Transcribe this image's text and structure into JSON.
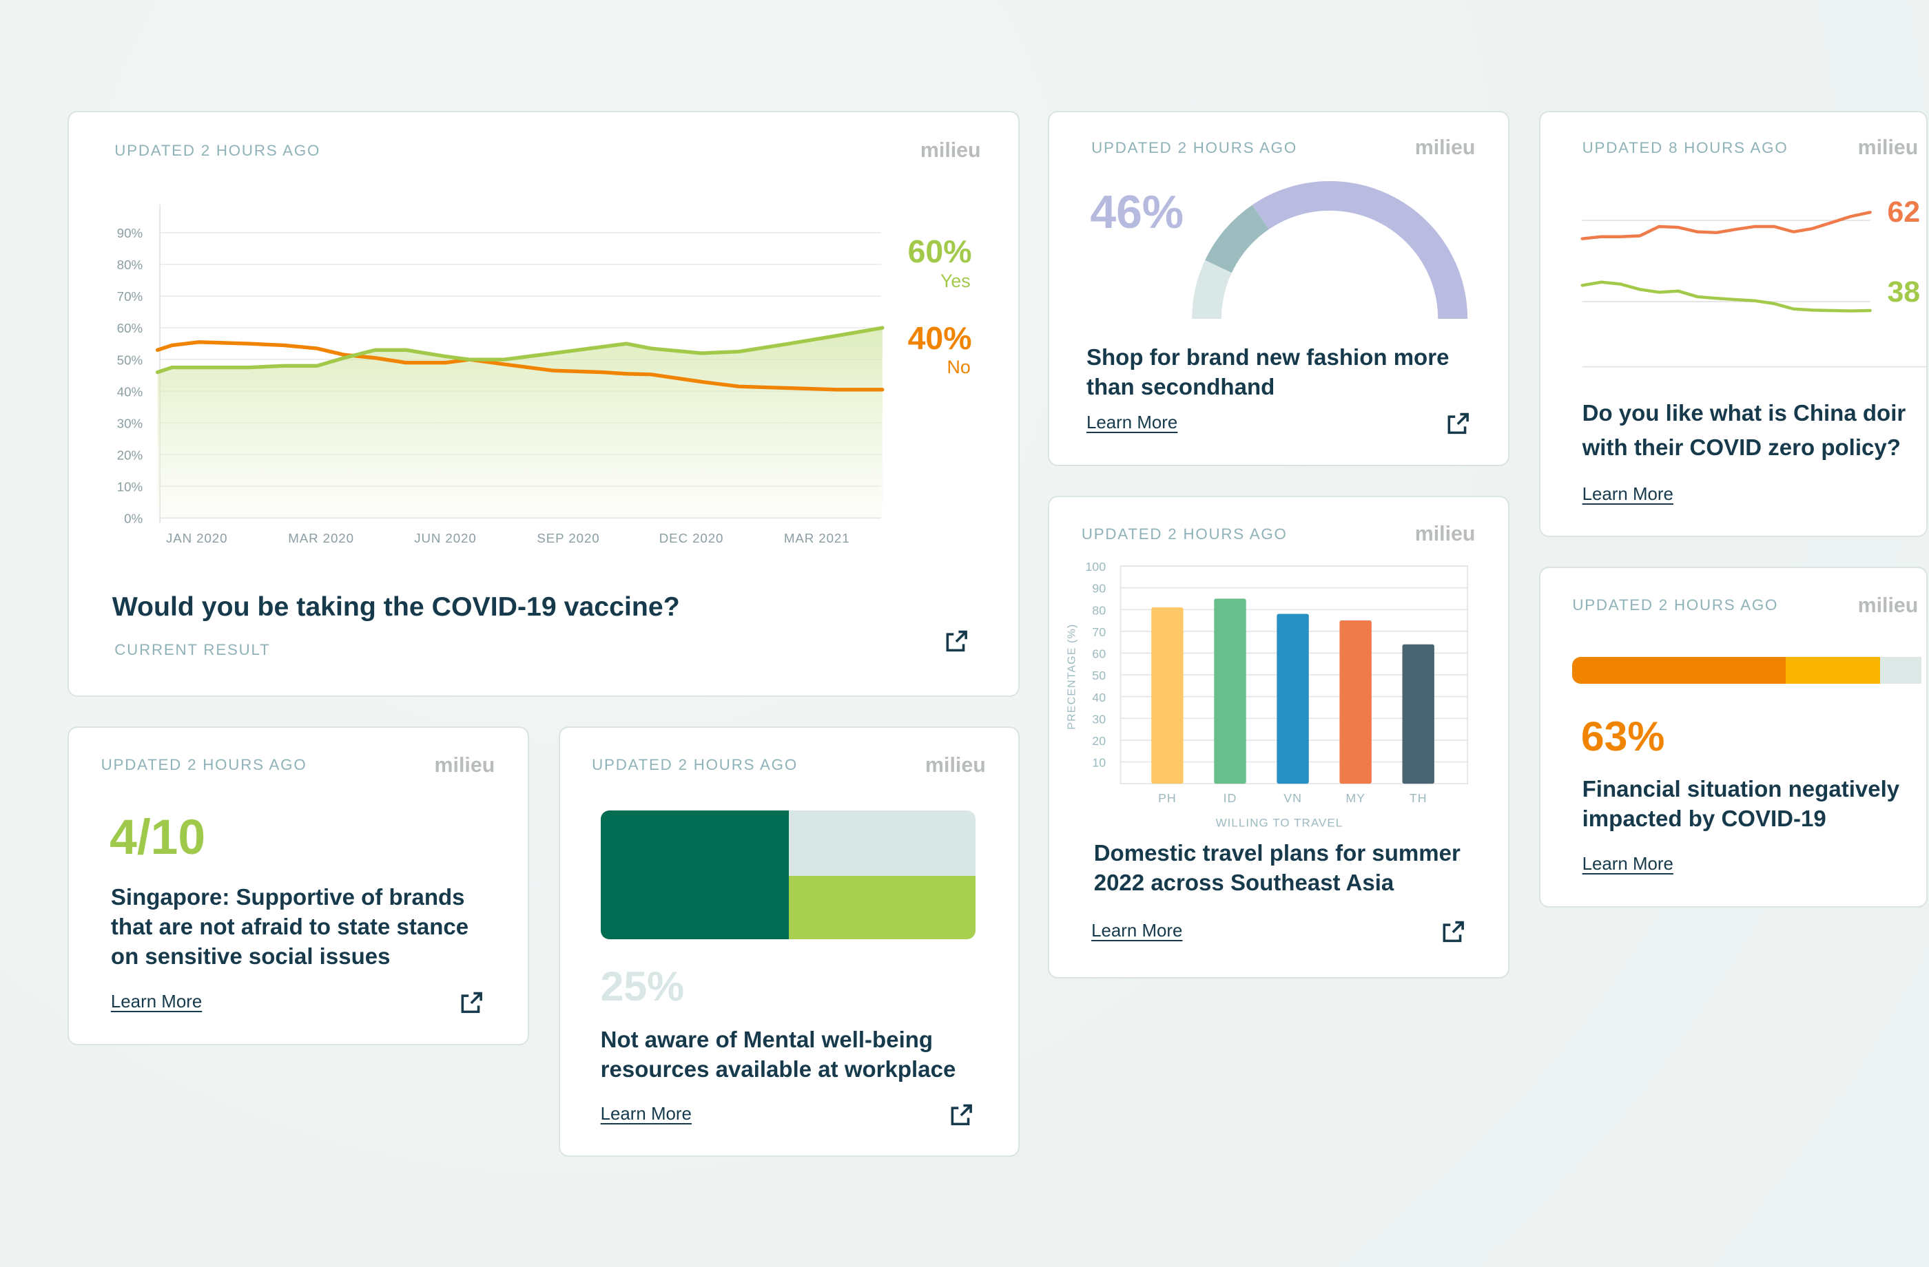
{
  "brand": "milieu",
  "colors": {
    "background": "#eef3f2",
    "title": "#163a4b",
    "meta": "#8fb2b9",
    "yes_green": "#a3c94b",
    "no_orange": "#f08300"
  },
  "cards": {
    "vaccine": {
      "updated": "UPDATED 2 HOURS AGO",
      "yes_value": "60%",
      "yes_label": "Yes",
      "no_value": "40%",
      "no_label": "No",
      "title": "Would you be taking the COVID-19 vaccine?",
      "subtitle": "CURRENT RESULT",
      "icon": "external-link-icon"
    },
    "singapore": {
      "updated": "UPDATED 2 HOURS AGO",
      "stat": "4/10",
      "title_lines": [
        "Singapore: Supportive of brands",
        "that are not afraid to state stance",
        "on sensitive social issues"
      ],
      "learn_more": "Learn More",
      "icon": "external-link-icon"
    },
    "mental": {
      "updated": "UPDATED 2 HOURS AGO",
      "stat": "25%",
      "title_lines": [
        "Not aware of Mental well-being",
        "resources available at workplace"
      ],
      "learn_more": "Learn More",
      "block_colors": [
        "#006d52",
        "#d8e7e5",
        "#a8cf50"
      ],
      "icon": "external-link-icon"
    },
    "fashion": {
      "updated": "UPDATED 2 HOURS AGO",
      "stat": "46%",
      "gauge_segments": [
        0.14,
        0.17,
        0.69
      ],
      "gauge_colors": [
        "#d9e8e6",
        "#9cbcc0",
        "#b9bbe0"
      ],
      "title_lines": [
        "Shop for brand new fashion more",
        "than secondhand"
      ],
      "learn_more": "Learn More",
      "icon": "external-link-icon"
    },
    "travel": {
      "updated": "UPDATED 2 HOURS AGO",
      "title_lines": [
        "Domestic travel plans for summer",
        "2022 across Southeast Asia"
      ],
      "learn_more": "Learn More",
      "icon": "external-link-icon"
    },
    "china": {
      "updated": "UPDATED 8 HOURS AGO",
      "stat_a": "62",
      "stat_b": "38",
      "title_lines": [
        "Do you like what is China doir",
        "with their COVID zero policy?"
      ],
      "learn_more": "Learn More"
    },
    "financial": {
      "updated": "UPDATED 2 HOURS AGO",
      "stat": "63%",
      "bar_segments": [
        0.61,
        0.27,
        0.12
      ],
      "bar_colors": [
        "#f08300",
        "#f9b500",
        "#dce9e7"
      ],
      "title_lines": [
        "Financial situation negatively",
        "impacted by COVID-19"
      ],
      "learn_more": "Learn More"
    }
  },
  "chart_data": [
    {
      "type": "area",
      "ylim": [
        0,
        90
      ],
      "yticks": [
        "0%",
        "10%",
        "20%",
        "30%",
        "40%",
        "50%",
        "60%",
        "70%",
        "80%",
        "90%"
      ],
      "xticks": [
        {
          "date": "2020-01-01",
          "label": "JAN 2020"
        },
        {
          "date": "2020-03-01",
          "label": "MAR 2020"
        },
        {
          "date": "2020-06-01",
          "label": "JUN 2020"
        },
        {
          "date": "2020-09-01",
          "label": "SEP 2020"
        },
        {
          "date": "2020-12-01",
          "label": "DEC 2020"
        },
        {
          "date": "2021-03-01",
          "label": "MAR 2021"
        }
      ],
      "grid": true,
      "x": [
        "2019-12-13",
        "2019-12-20",
        "2020-01-02",
        "2020-01-26",
        "2020-02-12",
        "2020-02-28",
        "2020-03-18",
        "2020-04-10",
        "2020-05-03",
        "2020-06-01",
        "2020-06-19",
        "2020-07-15",
        "2020-08-21",
        "2020-09-26",
        "2020-10-14",
        "2020-11-01",
        "2020-12-08",
        "2021-01-04",
        "2021-02-09",
        "2021-03-15",
        "2021-04-17"
      ],
      "series": [
        {
          "name": "Yes",
          "color": "#a3c94b",
          "values": [
            46,
            47.5,
            47.5,
            47.5,
            48,
            48,
            50.5,
            53,
            53,
            51,
            50,
            50,
            52,
            54,
            55,
            53.5,
            52,
            52.5,
            55,
            57.5,
            60
          ]
        },
        {
          "name": "No",
          "color": "#f08300",
          "values": [
            53,
            54.5,
            55.5,
            55,
            54.5,
            53.5,
            51.5,
            50.5,
            49,
            49,
            50,
            48.5,
            46.5,
            46,
            45.5,
            45.3,
            43,
            41.5,
            41,
            40.5,
            40.5
          ]
        }
      ]
    },
    {
      "type": "bar",
      "categories": [
        "PH",
        "ID",
        "VN",
        "MY",
        "TH"
      ],
      "values": [
        81,
        85,
        78,
        75,
        64
      ],
      "colors": [
        "#fec868",
        "#68be8c",
        "#2790c3",
        "#ef7b4b",
        "#4a6572"
      ],
      "ylim": [
        0,
        100
      ],
      "yticks": [
        10,
        20,
        30,
        40,
        50,
        60,
        70,
        80,
        90,
        100
      ],
      "xlabel": "WILLING TO TRAVEL",
      "ylabel": "PRECENTAGE (%)",
      "grid": true
    },
    {
      "type": "line",
      "series": [
        {
          "color": "#ef7b4b",
          "values": [
            55.5,
            56,
            56,
            56.2,
            58.5,
            58.3,
            57.2,
            57,
            57.8,
            58.5,
            58.5,
            57.2,
            58,
            59.5,
            61,
            62
          ]
        },
        {
          "color": "#a3c94b",
          "values": [
            44,
            44.8,
            44.3,
            43,
            42.3,
            42.6,
            41.2,
            40.8,
            40.5,
            40.2,
            39.5,
            38.2,
            37.9,
            37.8,
            37.7,
            37.8
          ]
        }
      ],
      "grid": true
    }
  ]
}
